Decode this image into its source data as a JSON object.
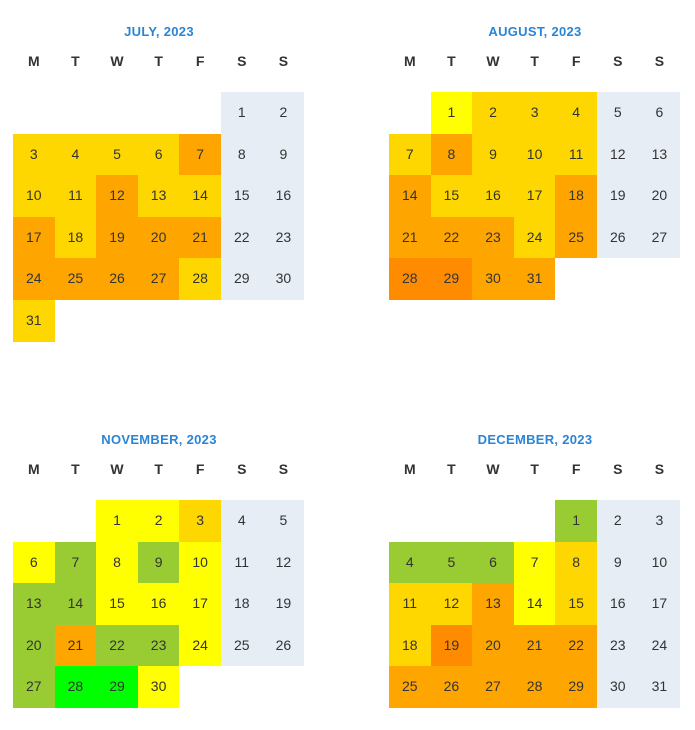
{
  "legend_colors": {
    "weekend": "#e6edf5",
    "bright_green": "#00ff00",
    "green": "#99cc33",
    "yellow": "#ffff00",
    "gold": "#ffd700",
    "orange": "#ffa500",
    "dark_orange": "#ff8c00"
  },
  "weekdays": [
    "M",
    "T",
    "W",
    "T",
    "F",
    "S",
    "S"
  ],
  "months": [
    {
      "title": "JULY, 2023",
      "days": [
        {
          "d": "1",
          "c": "weekend"
        },
        {
          "d": "2",
          "c": "weekend"
        },
        {
          "d": "3",
          "c": "gold"
        },
        {
          "d": "4",
          "c": "gold"
        },
        {
          "d": "5",
          "c": "gold"
        },
        {
          "d": "6",
          "c": "gold"
        },
        {
          "d": "7",
          "c": "orange"
        },
        {
          "d": "8",
          "c": "weekend"
        },
        {
          "d": "9",
          "c": "weekend"
        },
        {
          "d": "10",
          "c": "gold"
        },
        {
          "d": "11",
          "c": "gold"
        },
        {
          "d": "12",
          "c": "orange"
        },
        {
          "d": "13",
          "c": "gold"
        },
        {
          "d": "14",
          "c": "gold"
        },
        {
          "d": "15",
          "c": "weekend"
        },
        {
          "d": "16",
          "c": "weekend"
        },
        {
          "d": "17",
          "c": "orange"
        },
        {
          "d": "18",
          "c": "gold"
        },
        {
          "d": "19",
          "c": "orange"
        },
        {
          "d": "20",
          "c": "orange"
        },
        {
          "d": "21",
          "c": "orange"
        },
        {
          "d": "22",
          "c": "weekend"
        },
        {
          "d": "23",
          "c": "weekend"
        },
        {
          "d": "24",
          "c": "orange"
        },
        {
          "d": "25",
          "c": "orange"
        },
        {
          "d": "26",
          "c": "orange"
        },
        {
          "d": "27",
          "c": "orange"
        },
        {
          "d": "28",
          "c": "gold"
        },
        {
          "d": "29",
          "c": "weekend"
        },
        {
          "d": "30",
          "c": "weekend"
        },
        {
          "d": "31",
          "c": "gold"
        }
      ]
    },
    {
      "title": "AUGUST, 2023",
      "days": [
        {
          "d": "1",
          "c": "yellow"
        },
        {
          "d": "2",
          "c": "gold"
        },
        {
          "d": "3",
          "c": "gold"
        },
        {
          "d": "4",
          "c": "gold"
        },
        {
          "d": "5",
          "c": "weekend"
        },
        {
          "d": "6",
          "c": "weekend"
        },
        {
          "d": "7",
          "c": "gold"
        },
        {
          "d": "8",
          "c": "orange"
        },
        {
          "d": "9",
          "c": "gold"
        },
        {
          "d": "10",
          "c": "gold"
        },
        {
          "d": "11",
          "c": "gold"
        },
        {
          "d": "12",
          "c": "weekend"
        },
        {
          "d": "13",
          "c": "weekend"
        },
        {
          "d": "14",
          "c": "orange"
        },
        {
          "d": "15",
          "c": "gold"
        },
        {
          "d": "16",
          "c": "gold"
        },
        {
          "d": "17",
          "c": "gold"
        },
        {
          "d": "18",
          "c": "orange"
        },
        {
          "d": "19",
          "c": "weekend"
        },
        {
          "d": "20",
          "c": "weekend"
        },
        {
          "d": "21",
          "c": "orange"
        },
        {
          "d": "22",
          "c": "orange"
        },
        {
          "d": "23",
          "c": "orange"
        },
        {
          "d": "24",
          "c": "gold"
        },
        {
          "d": "25",
          "c": "orange"
        },
        {
          "d": "26",
          "c": "weekend"
        },
        {
          "d": "27",
          "c": "weekend"
        },
        {
          "d": "28",
          "c": "dark_orange"
        },
        {
          "d": "29",
          "c": "dark_orange"
        },
        {
          "d": "30",
          "c": "orange"
        },
        {
          "d": "31",
          "c": "orange"
        }
      ]
    },
    {
      "title": "NOVEMBER, 2023",
      "days": [
        {
          "d": "1",
          "c": "yellow"
        },
        {
          "d": "2",
          "c": "yellow"
        },
        {
          "d": "3",
          "c": "gold"
        },
        {
          "d": "4",
          "c": "weekend"
        },
        {
          "d": "5",
          "c": "weekend"
        },
        {
          "d": "6",
          "c": "yellow"
        },
        {
          "d": "7",
          "c": "green"
        },
        {
          "d": "8",
          "c": "yellow"
        },
        {
          "d": "9",
          "c": "green"
        },
        {
          "d": "10",
          "c": "yellow"
        },
        {
          "d": "11",
          "c": "weekend"
        },
        {
          "d": "12",
          "c": "weekend"
        },
        {
          "d": "13",
          "c": "green"
        },
        {
          "d": "14",
          "c": "green"
        },
        {
          "d": "15",
          "c": "yellow"
        },
        {
          "d": "16",
          "c": "yellow"
        },
        {
          "d": "17",
          "c": "yellow"
        },
        {
          "d": "18",
          "c": "weekend"
        },
        {
          "d": "19",
          "c": "weekend"
        },
        {
          "d": "20",
          "c": "green"
        },
        {
          "d": "21",
          "c": "orange"
        },
        {
          "d": "22",
          "c": "green"
        },
        {
          "d": "23",
          "c": "green"
        },
        {
          "d": "24",
          "c": "yellow"
        },
        {
          "d": "25",
          "c": "weekend"
        },
        {
          "d": "26",
          "c": "weekend"
        },
        {
          "d": "27",
          "c": "green"
        },
        {
          "d": "28",
          "c": "bright_green"
        },
        {
          "d": "29",
          "c": "bright_green"
        },
        {
          "d": "30",
          "c": "yellow"
        }
      ]
    },
    {
      "title": "DECEMBER, 2023",
      "days": [
        {
          "d": "1",
          "c": "green"
        },
        {
          "d": "2",
          "c": "weekend"
        },
        {
          "d": "3",
          "c": "weekend"
        },
        {
          "d": "4",
          "c": "green"
        },
        {
          "d": "5",
          "c": "green"
        },
        {
          "d": "6",
          "c": "green"
        },
        {
          "d": "7",
          "c": "yellow"
        },
        {
          "d": "8",
          "c": "gold"
        },
        {
          "d": "9",
          "c": "weekend"
        },
        {
          "d": "10",
          "c": "weekend"
        },
        {
          "d": "11",
          "c": "gold"
        },
        {
          "d": "12",
          "c": "gold"
        },
        {
          "d": "13",
          "c": "orange"
        },
        {
          "d": "14",
          "c": "yellow"
        },
        {
          "d": "15",
          "c": "gold"
        },
        {
          "d": "16",
          "c": "weekend"
        },
        {
          "d": "17",
          "c": "weekend"
        },
        {
          "d": "18",
          "c": "gold"
        },
        {
          "d": "19",
          "c": "dark_orange"
        },
        {
          "d": "20",
          "c": "orange"
        },
        {
          "d": "21",
          "c": "orange"
        },
        {
          "d": "22",
          "c": "orange"
        },
        {
          "d": "23",
          "c": "weekend"
        },
        {
          "d": "24",
          "c": "weekend"
        },
        {
          "d": "25",
          "c": "orange"
        },
        {
          "d": "26",
          "c": "orange"
        },
        {
          "d": "27",
          "c": "orange"
        },
        {
          "d": "28",
          "c": "orange"
        },
        {
          "d": "29",
          "c": "orange"
        },
        {
          "d": "30",
          "c": "weekend"
        },
        {
          "d": "31",
          "c": "weekend"
        }
      ]
    }
  ]
}
